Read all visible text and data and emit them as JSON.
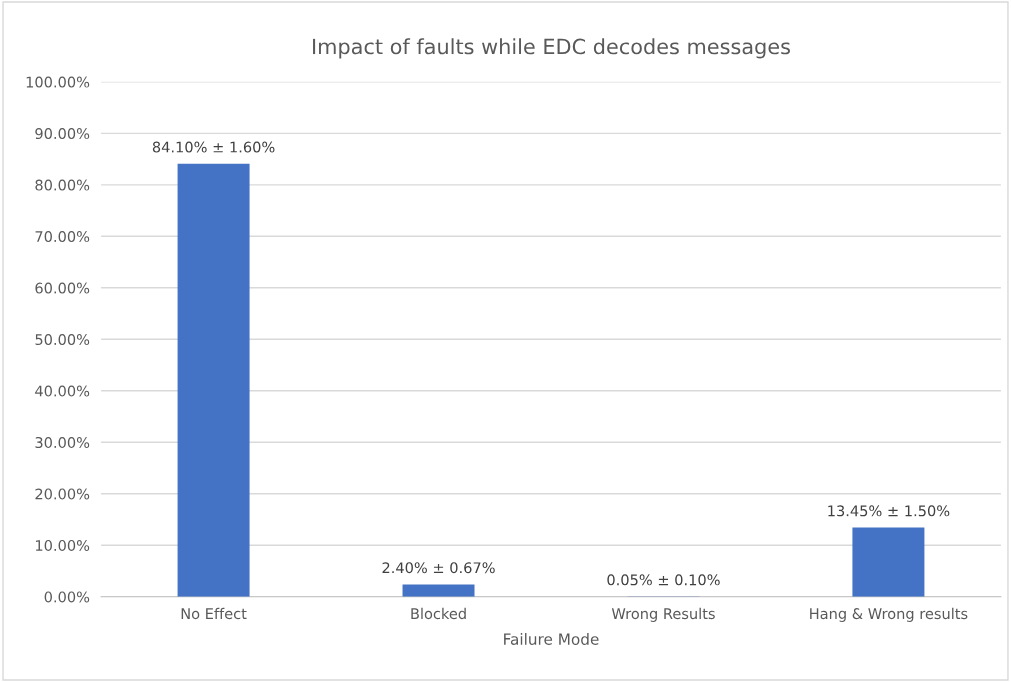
{
  "chart_data": {
    "type": "bar",
    "title": "Impact of faults while EDC decodes messages",
    "xlabel": "Failure Mode",
    "categories": [
      "No Effect",
      "Blocked",
      "Wrong Results",
      "Hang & Wrong results"
    ],
    "values": [
      84.1,
      2.4,
      0.05,
      13.45
    ],
    "value_labels": [
      "84.10% ± 1.60%",
      "2.40% ± 0.67%",
      "0.05% ± 0.10%",
      "13.45% ± 1.50%"
    ],
    "color": "#4472c4",
    "ylim": [
      0,
      100
    ],
    "yticks": [
      {
        "value": 0,
        "label": "0.00%"
      },
      {
        "value": 10,
        "label": "10.00%"
      },
      {
        "value": 20,
        "label": "20.00%"
      },
      {
        "value": 30,
        "label": "30.00%"
      },
      {
        "value": 40,
        "label": "40.00%"
      },
      {
        "value": 50,
        "label": "50.00%"
      },
      {
        "value": 60,
        "label": "60.00%"
      },
      {
        "value": 70,
        "label": "70.00%"
      },
      {
        "value": 80,
        "label": "80.00%"
      },
      {
        "value": 90,
        "label": "90.00%"
      },
      {
        "value": 100,
        "label": "100.00%"
      }
    ],
    "grid": "y"
  }
}
